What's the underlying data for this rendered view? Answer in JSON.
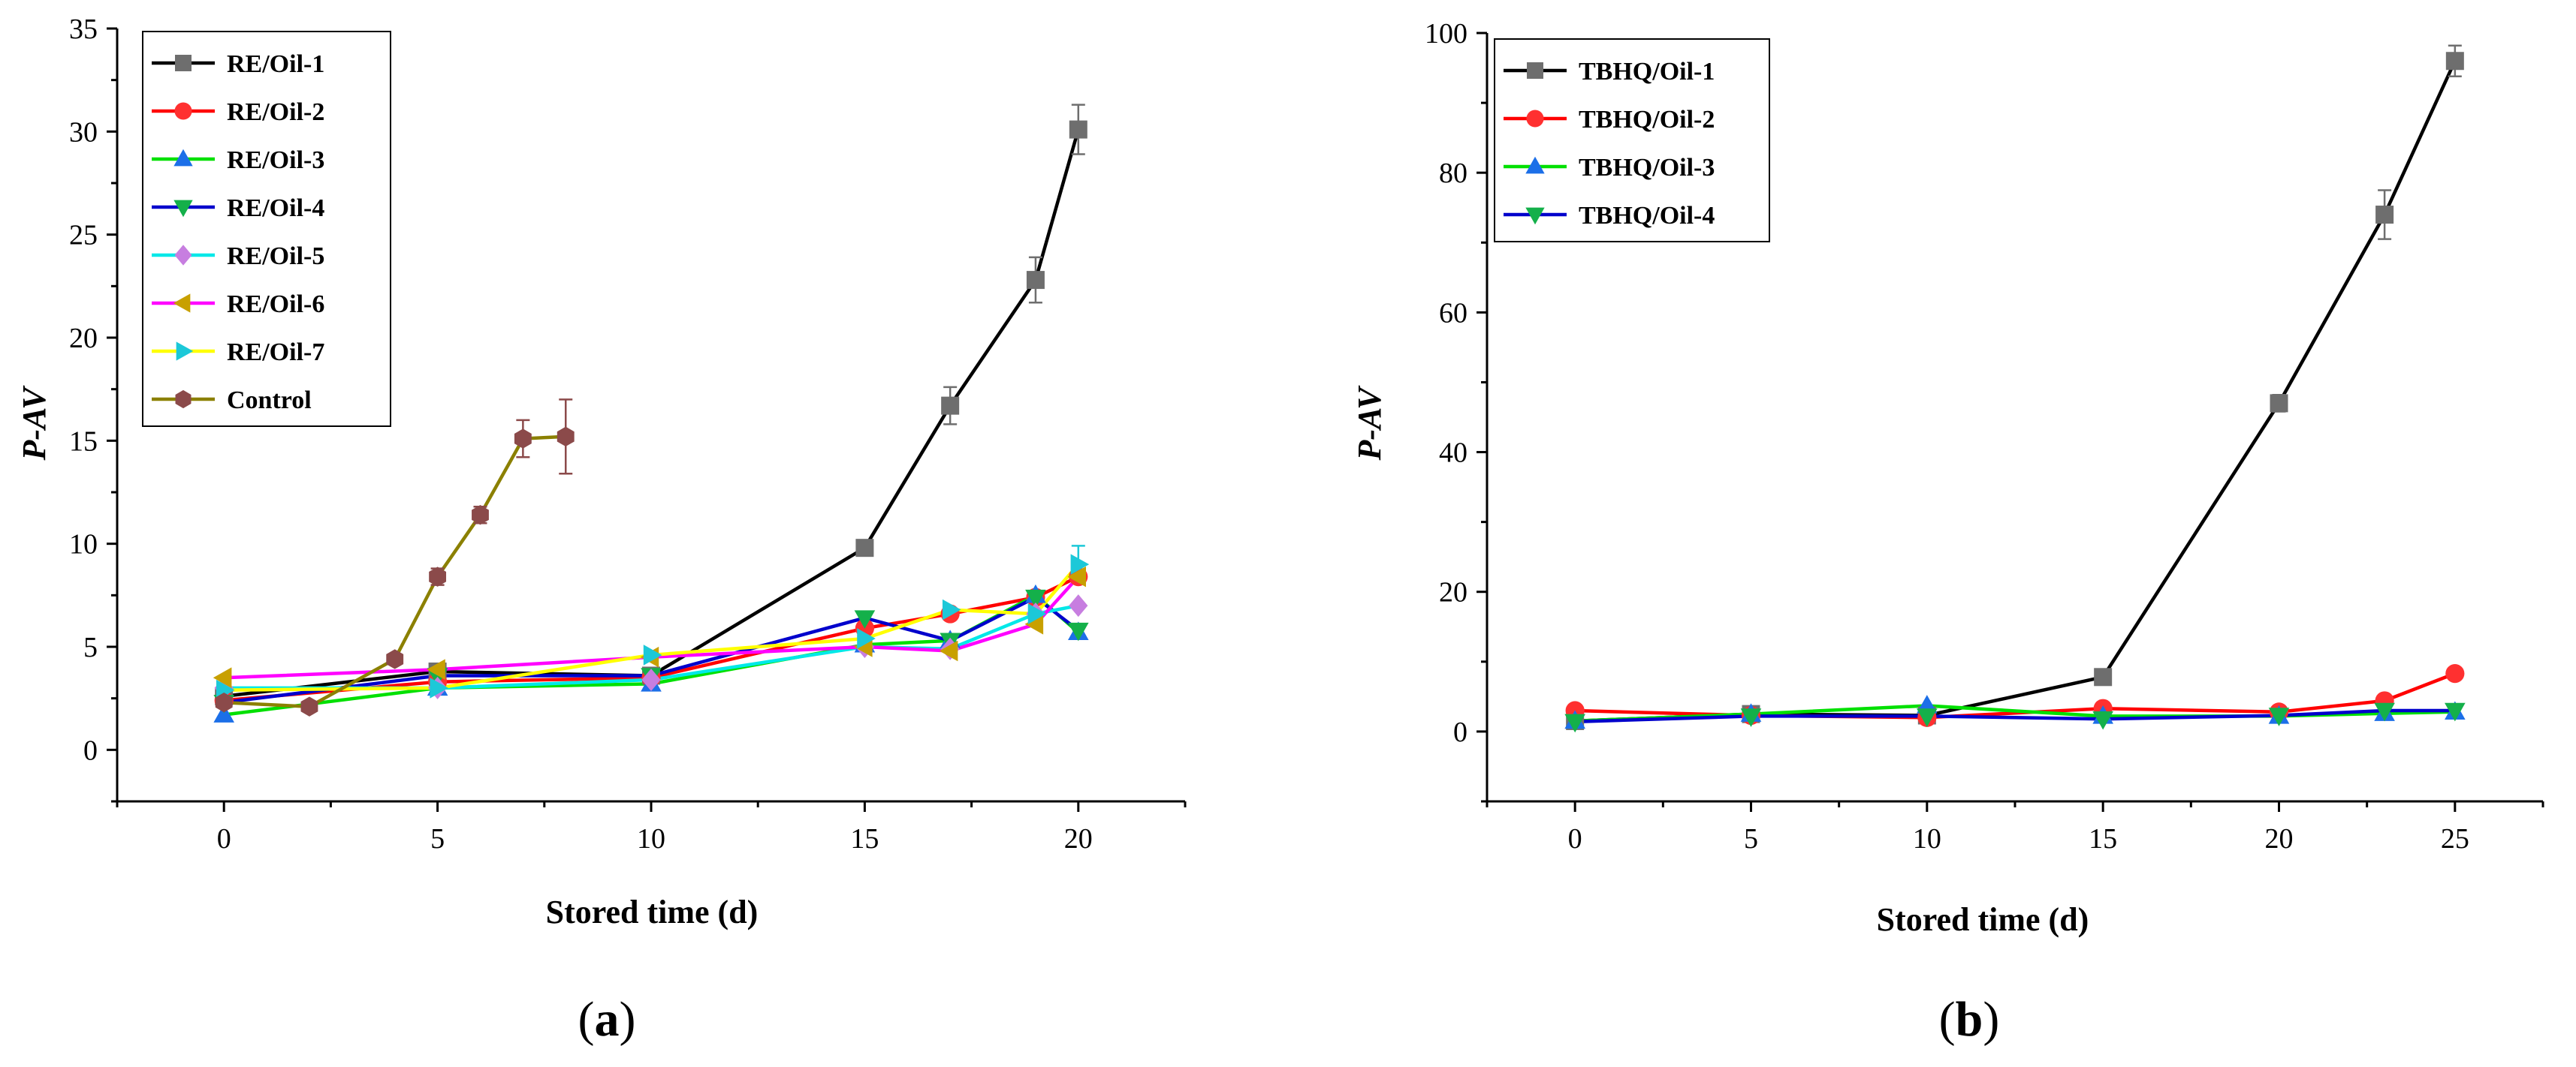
{
  "chart_data": [
    {
      "type": "line",
      "panel_label": "a",
      "xlabel": "Stored time (d)",
      "ylabel": "P-AV",
      "xlim": [
        -2.5,
        22.5
      ],
      "ylim": [
        -2.5,
        35
      ],
      "xticks": [
        0,
        5,
        10,
        15,
        20
      ],
      "yticks": [
        0,
        5,
        10,
        15,
        20,
        25,
        30,
        35
      ],
      "legend_position": "top-left",
      "series": [
        {
          "name": "RE/Oil-1",
          "color": "#000000",
          "marker_color": "#6e6e6e",
          "marker": "square",
          "x": [
            0,
            5,
            10,
            15,
            17,
            19,
            20
          ],
          "y": [
            2.6,
            3.8,
            3.6,
            9.8,
            16.7,
            22.8,
            30.1
          ],
          "err": [
            0.2,
            0.2,
            0.2,
            0.3,
            0.9,
            1.1,
            1.2
          ]
        },
        {
          "name": "RE/Oil-2",
          "color": "#ff0000",
          "marker_color": "#ff3030",
          "marker": "circle",
          "x": [
            0,
            5,
            10,
            15,
            17,
            19,
            20
          ],
          "y": [
            2.4,
            3.3,
            3.5,
            5.9,
            6.6,
            7.4,
            8.4
          ]
        },
        {
          "name": "RE/Oil-3",
          "color": "#00e000",
          "marker_color": "#1c6fe8",
          "marker": "triangle-up",
          "x": [
            0,
            5,
            10,
            15,
            17,
            19,
            20
          ],
          "y": [
            1.7,
            3.0,
            3.2,
            5.1,
            5.3,
            7.5,
            5.7
          ]
        },
        {
          "name": "RE/Oil-4",
          "color": "#0000cc",
          "marker_color": "#14b04a",
          "marker": "triangle-down",
          "x": [
            0,
            5,
            10,
            15,
            17,
            19,
            20
          ],
          "y": [
            2.3,
            3.6,
            3.6,
            6.4,
            5.3,
            7.4,
            5.8
          ]
        },
        {
          "name": "RE/Oil-5",
          "color": "#00e8e8",
          "marker_color": "#c77ee0",
          "marker": "diamond",
          "x": [
            0,
            5,
            10,
            15,
            17,
            19,
            20
          ],
          "y": [
            3.0,
            3.0,
            3.4,
            5.0,
            4.9,
            6.6,
            7.0
          ]
        },
        {
          "name": "RE/Oil-6",
          "color": "#ff00ff",
          "marker_color": "#c8a000",
          "marker": "triangle-left",
          "x": [
            0,
            5,
            10,
            15,
            17,
            19,
            20
          ],
          "y": [
            3.5,
            3.9,
            4.5,
            5.0,
            4.8,
            6.1,
            8.4
          ]
        },
        {
          "name": "RE/Oil-7",
          "color": "#ffff00",
          "marker_color": "#1cc8d8",
          "marker": "triangle-right",
          "x": [
            0,
            5,
            10,
            15,
            17,
            19,
            20
          ],
          "y": [
            2.9,
            3.0,
            4.6,
            5.4,
            6.8,
            6.6,
            9.0
          ],
          "err": [
            0,
            0,
            0,
            0,
            0,
            0,
            0.9
          ]
        },
        {
          "name": "Control",
          "color": "#8b8000",
          "marker_color": "#8b4a4a",
          "marker": "hexagon",
          "x": [
            0,
            2,
            4,
            5,
            6,
            7,
            8
          ],
          "y": [
            2.3,
            2.1,
            4.4,
            8.4,
            11.4,
            15.1,
            15.2
          ],
          "err": [
            0.1,
            0.1,
            0.2,
            0.4,
            0.4,
            0.9,
            1.8
          ]
        }
      ]
    },
    {
      "type": "line",
      "panel_label": "b",
      "xlabel": "Stored time (d)",
      "ylabel": "P-AV",
      "xlim": [
        -2.5,
        27.5
      ],
      "ylim": [
        -10,
        100
      ],
      "xticks": [
        0,
        5,
        10,
        15,
        20,
        25
      ],
      "yticks": [
        0,
        20,
        40,
        60,
        80,
        100
      ],
      "legend_position": "top-left",
      "series": [
        {
          "name": "TBHQ/Oil-1",
          "color": "#000000",
          "marker_color": "#6e6e6e",
          "marker": "square",
          "x": [
            0,
            5,
            10,
            15,
            20,
            23,
            25
          ],
          "y": [
            1.5,
            2.5,
            2.3,
            7.8,
            47.0,
            74.0,
            96.0
          ],
          "err": [
            0.2,
            0.2,
            0.2,
            0.5,
            1.2,
            3.5,
            2.2
          ]
        },
        {
          "name": "TBHQ/Oil-2",
          "color": "#ff0000",
          "marker_color": "#ff3030",
          "marker": "circle",
          "x": [
            0,
            5,
            10,
            15,
            20,
            23,
            25
          ],
          "y": [
            3.0,
            2.3,
            2.0,
            3.3,
            2.8,
            4.4,
            8.3
          ]
        },
        {
          "name": "TBHQ/Oil-3",
          "color": "#00e000",
          "marker_color": "#1c6fe8",
          "marker": "triangle-up",
          "x": [
            0,
            5,
            10,
            15,
            20,
            23,
            25
          ],
          "y": [
            1.5,
            2.5,
            3.7,
            2.2,
            2.2,
            2.6,
            2.8
          ]
        },
        {
          "name": "TBHQ/Oil-4",
          "color": "#0000cc",
          "marker_color": "#14b04a",
          "marker": "triangle-down",
          "x": [
            0,
            5,
            10,
            15,
            20,
            23,
            25
          ],
          "y": [
            1.4,
            2.2,
            2.2,
            1.8,
            2.3,
            3.0,
            3.0
          ]
        }
      ]
    }
  ]
}
